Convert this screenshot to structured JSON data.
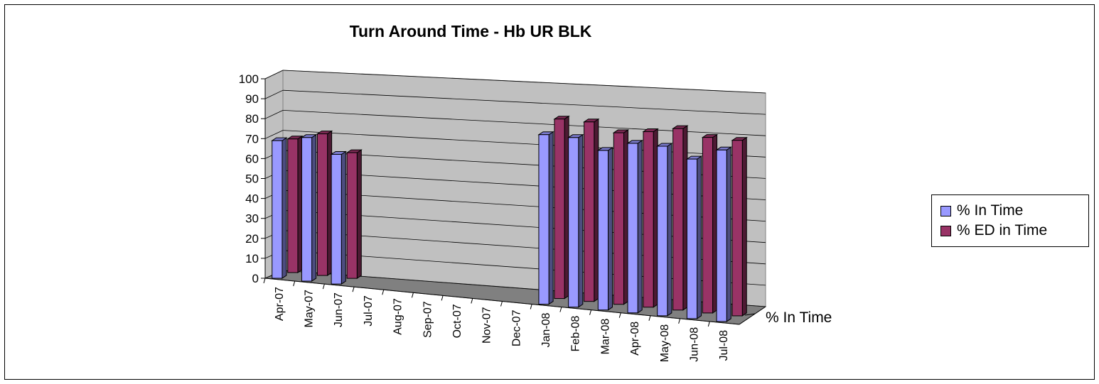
{
  "chart_data": {
    "type": "bar",
    "subtype": "3d-clustered-column",
    "title": "Turn Around Time - Hb UR BLK",
    "categories": [
      "Apr-07",
      "May-07",
      "Jun-07",
      "Jul-07",
      "Aug-07",
      "Sep-07",
      "Oct-07",
      "Nov-07",
      "Dec-07",
      "Jan-08",
      "Feb-08",
      "Mar-08",
      "Apr-08",
      "May-08",
      "Jun-08",
      "Jul-08"
    ],
    "series": [
      {
        "name": "% In Time",
        "color": "#9999ff",
        "values": [
          69,
          72,
          65,
          null,
          null,
          null,
          null,
          null,
          null,
          85,
          85,
          80,
          85,
          85,
          80,
          86
        ]
      },
      {
        "name": "% ED in Time",
        "color": "#993366",
        "values": [
          67,
          71,
          63,
          null,
          null,
          null,
          null,
          null,
          null,
          90,
          90,
          86,
          88,
          91,
          88,
          88
        ]
      }
    ],
    "yticks": [
      "0",
      "10",
      "20",
      "30",
      "40",
      "50",
      "60",
      "70",
      "80",
      "90",
      "100"
    ],
    "ylim": [
      0,
      100
    ],
    "depth_axis_label": "% In Time",
    "grid": true,
    "legend_position": "right"
  }
}
